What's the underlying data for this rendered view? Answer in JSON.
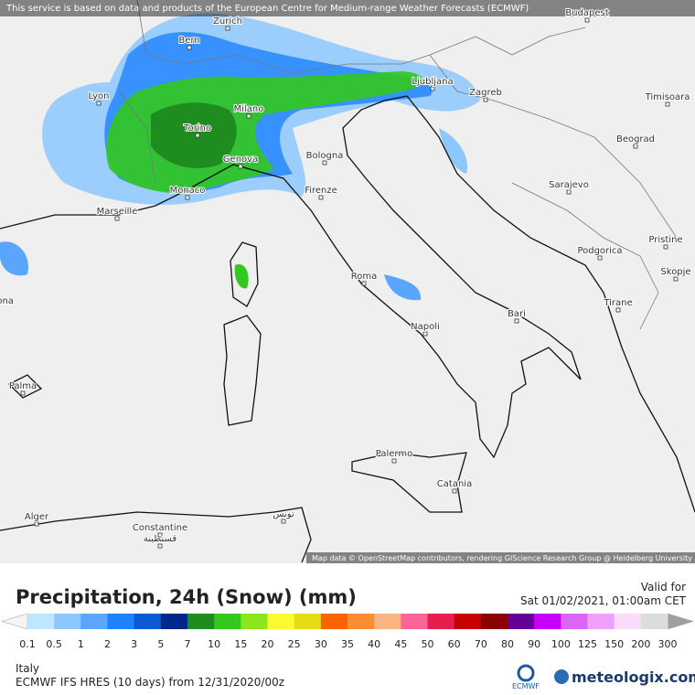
{
  "header": {
    "notice": "This service is based on data and products of the European Centre for Medium-range Weather Forecasts (ECMWF)",
    "attribution": "Map data © OpenStreetMap contributors, rendering GIScience Research Group @ Heidelberg University"
  },
  "map": {
    "cities": [
      "Zurich",
      "Budapest",
      "Bern",
      "Lyon",
      "Ljubljana",
      "Zagreb",
      "Timisoara",
      "Milano",
      "Torino",
      "Beograd",
      "Bologna",
      "Genova",
      "Sarajevo",
      "Monaco",
      "Firenze",
      "Marseille",
      "Podgorica",
      "Pristine",
      "Skopje",
      "Roma",
      "Barcelona",
      "Tirane",
      "Bari",
      "Napoli",
      "Palma",
      "Palermo",
      "Catania",
      "Alger",
      "Constantine",
      "قسنطينة",
      "تونس"
    ]
  },
  "panel": {
    "title": "Precipitation, 24h (Snow) (mm)",
    "valid_label": "Valid for",
    "valid_time": "Sat 01/02/2021, 01:00am CET",
    "region": "Italy",
    "model": "ECMWF IFS HRES (10 days) from 12/31/2020/00z"
  },
  "legend": {
    "ticks": [
      0.1,
      0.5,
      1,
      2,
      3,
      5,
      7,
      10,
      15,
      20,
      25,
      30,
      35,
      40,
      45,
      50,
      60,
      70,
      80,
      90,
      100,
      125,
      150,
      200,
      300
    ],
    "colors": [
      "#bfe6ff",
      "#8cc8ff",
      "#5aa6ff",
      "#1e82ff",
      "#0a5ad2",
      "#00288c",
      "#1e8c1e",
      "#32c81e",
      "#8ce61e",
      "#fafa32",
      "#e6dc14",
      "#fa6400",
      "#fa8c32",
      "#fab482",
      "#fa6496",
      "#e61e50",
      "#c80000",
      "#8c0000",
      "#640096",
      "#c800fa",
      "#dc64fa",
      "#f0a0fa",
      "#fadcfa",
      "#dcdcdc"
    ],
    "under_color": "#f5f5f5",
    "over_color": "#a0a0a0"
  },
  "logos": {
    "ecmwf": "ECMWF",
    "meteologix": "meteologix.com"
  }
}
